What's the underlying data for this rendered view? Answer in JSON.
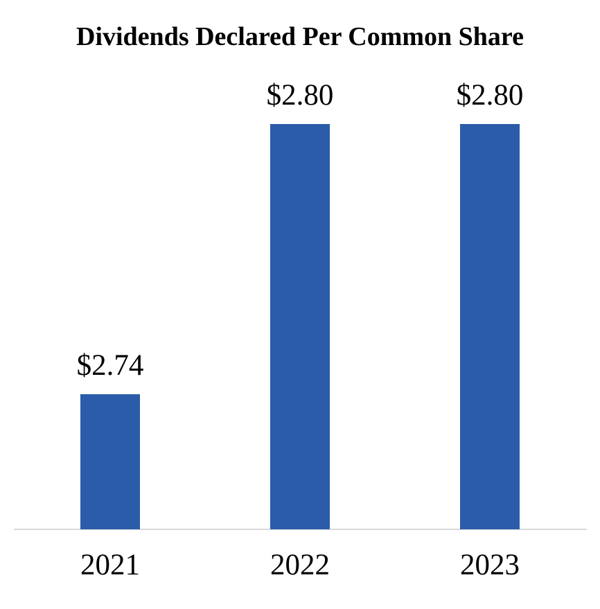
{
  "chart": {
    "bar_color": "#2B5CA9",
    "axis_color": "#D9D9D9",
    "text_color": "#000000",
    "background_color": "#FFFFFF"
  },
  "chart_data": {
    "type": "bar",
    "title": "Dividends Declared Per Common Share",
    "categories": [
      "2021",
      "2022",
      "2023"
    ],
    "values": [
      2.74,
      2.8,
      2.8
    ],
    "data_labels": [
      "$2.74",
      "$2.80",
      "$2.80"
    ],
    "xlabel": "",
    "ylabel": "",
    "ylim": [
      2.71,
      2.8
    ],
    "y_axis_visible": false,
    "grid": false,
    "legend": false,
    "baseline_visible": true
  }
}
